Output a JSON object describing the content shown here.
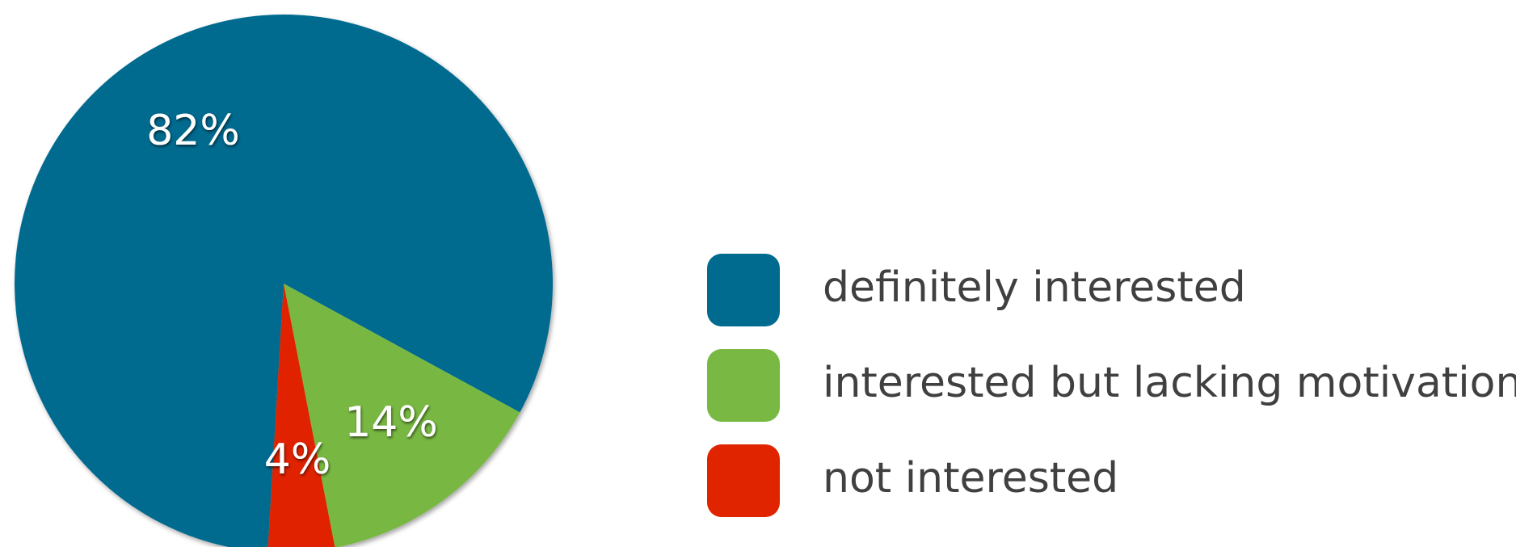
{
  "chart_data": {
    "type": "pie",
    "categories": [
      "definitely interested",
      "interested but lacking motivation",
      "not interested"
    ],
    "values": [
      82,
      14,
      4
    ],
    "value_labels": [
      "82%",
      "14%",
      "4%"
    ],
    "colors": [
      "#006b8f",
      "#78b843",
      "#e02400"
    ]
  }
}
